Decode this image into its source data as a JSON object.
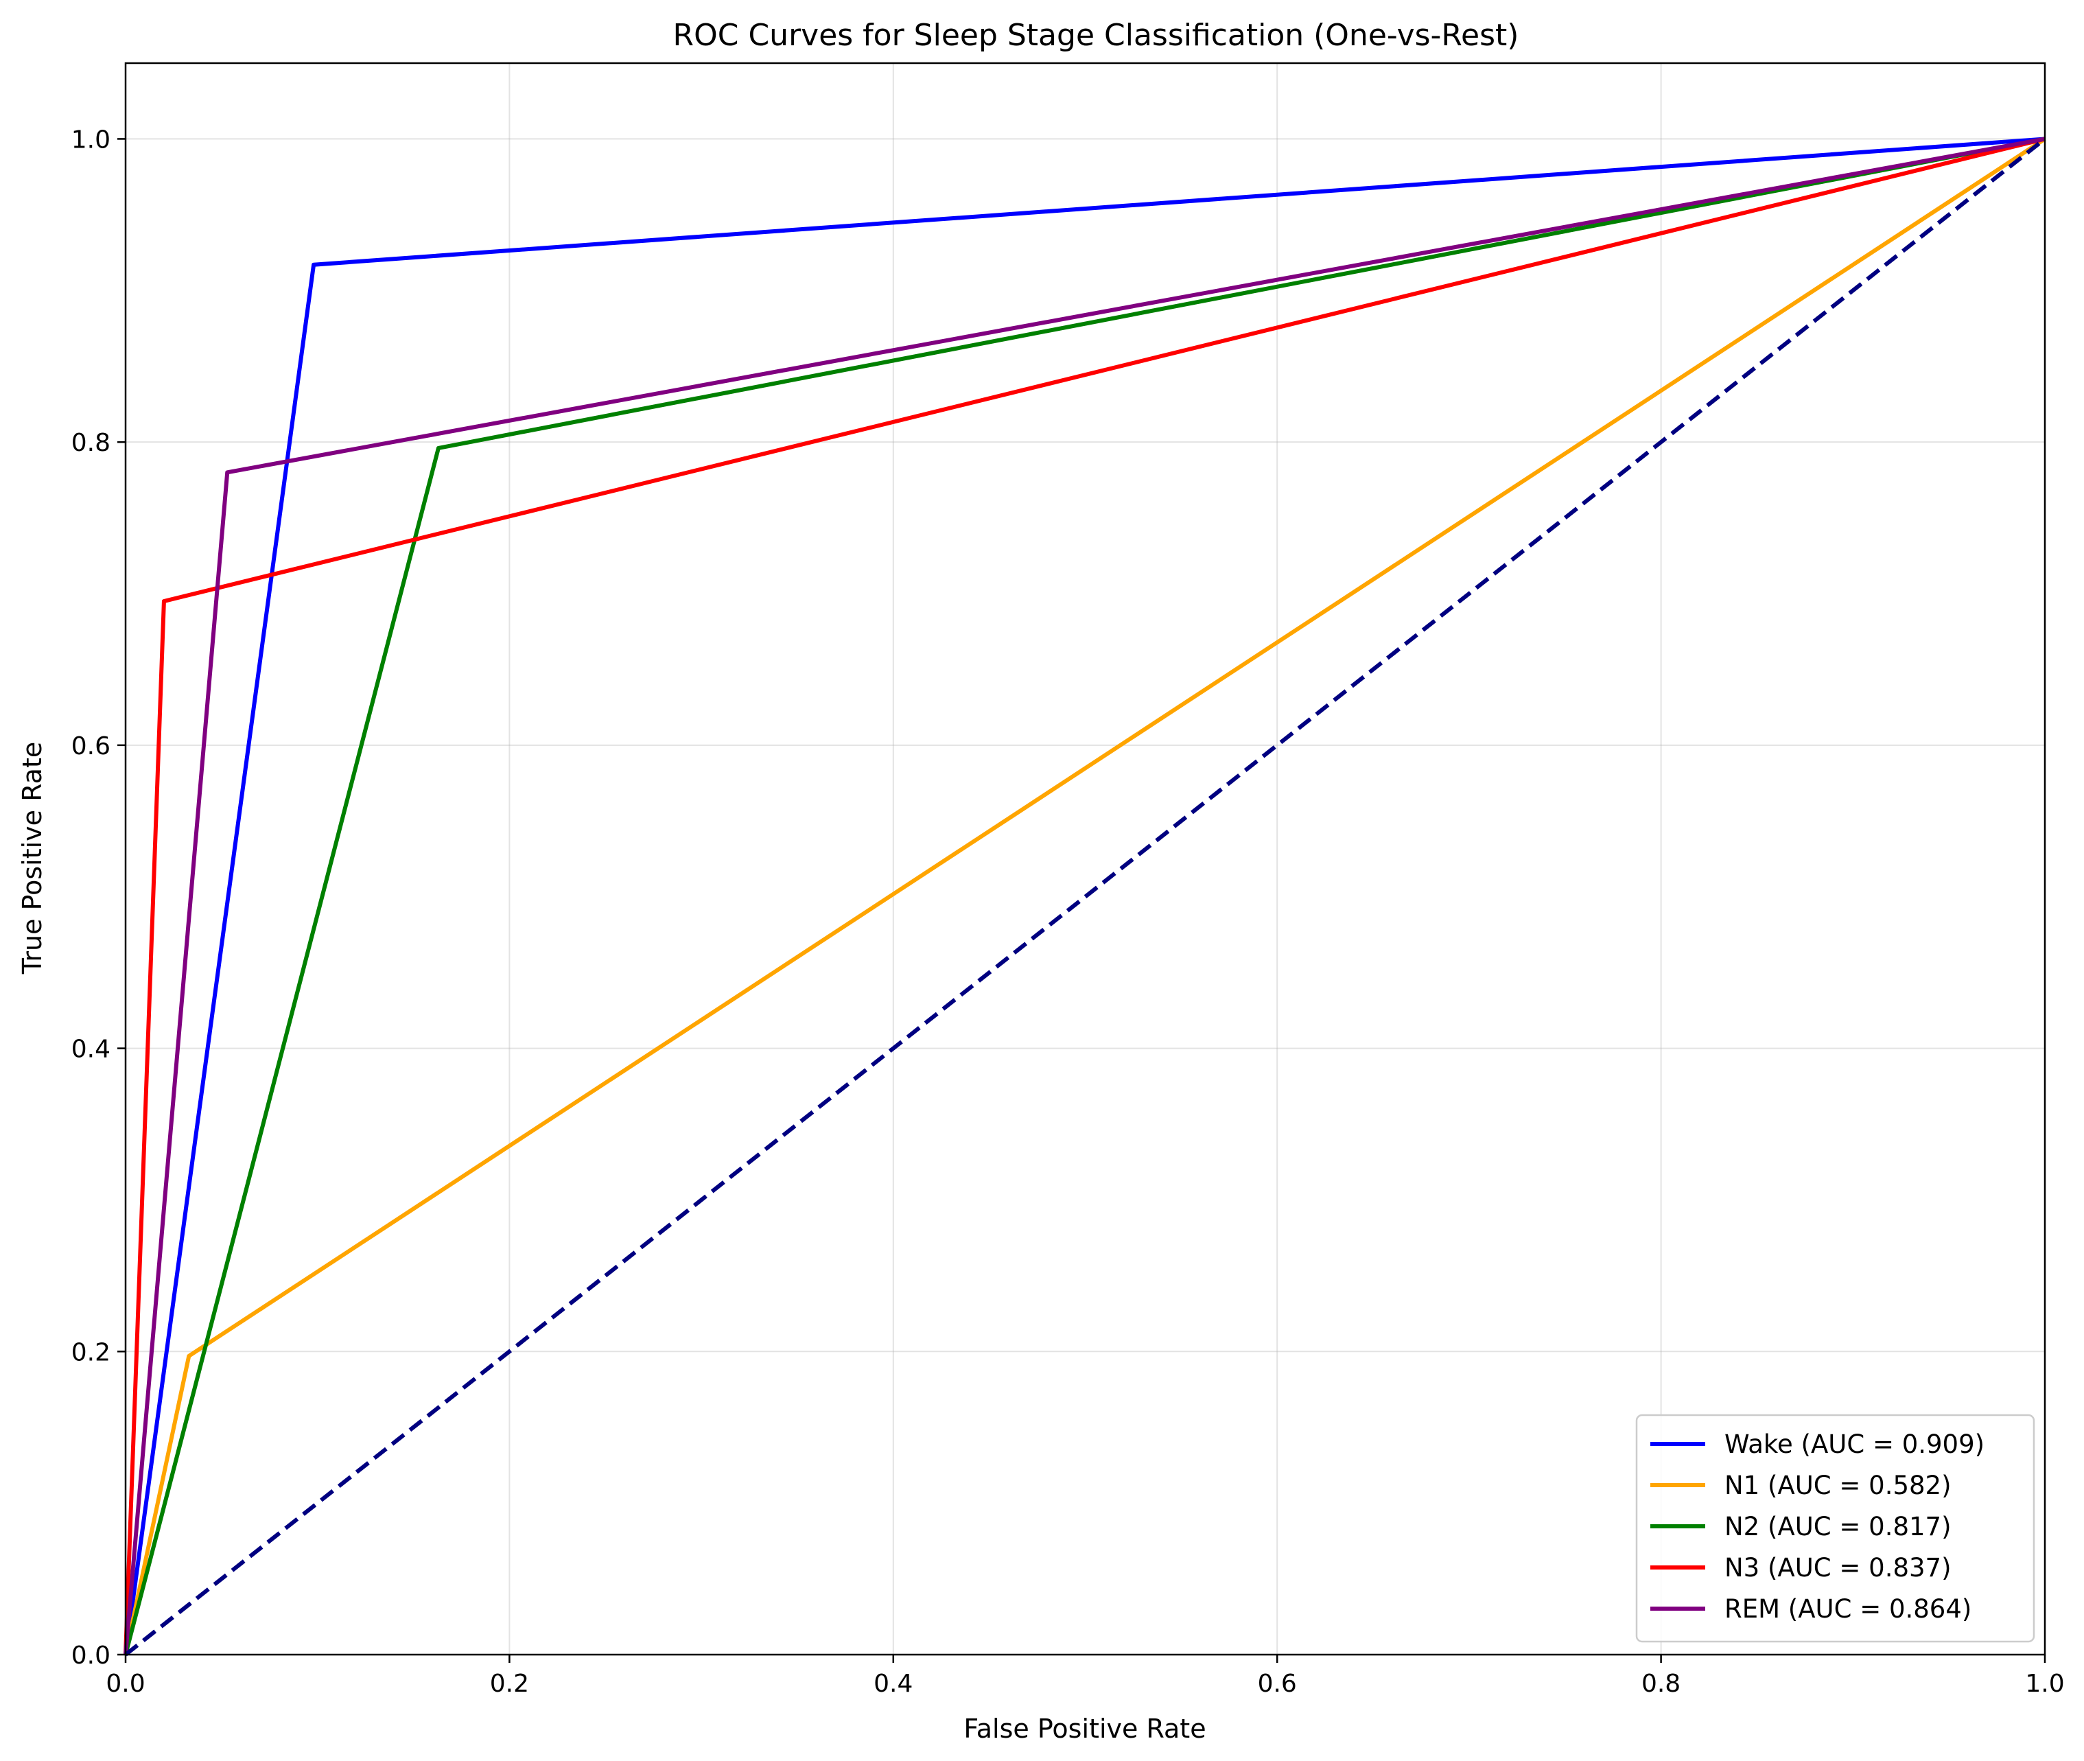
{
  "chart_data": {
    "type": "line",
    "title": "ROC Curves for Sleep Stage Classification (One-vs-Rest)",
    "xlabel": "False Positive Rate",
    "ylabel": "True Positive Rate",
    "xlim": [
      0,
      1
    ],
    "ylim": [
      0,
      1.05
    ],
    "xticks": [
      0.0,
      0.2,
      0.4,
      0.6,
      0.8,
      1.0
    ],
    "yticks": [
      0.0,
      0.2,
      0.4,
      0.6,
      0.8,
      1.0
    ],
    "xtick_labels": [
      "0.0",
      "0.2",
      "0.4",
      "0.6",
      "0.8",
      "1.0"
    ],
    "ytick_labels": [
      "0.0",
      "0.2",
      "0.4",
      "0.6",
      "0.8",
      "1.0"
    ],
    "grid": true,
    "legend_position": "lower-right",
    "series": [
      {
        "name": "Wake (AUC = 0.909)",
        "color": "#0000ff",
        "x": [
          0,
          0.098,
          1
        ],
        "y": [
          0,
          0.917,
          1
        ]
      },
      {
        "name": "N1 (AUC = 0.582)",
        "color": "#ffa500",
        "x": [
          0,
          0.033,
          1
        ],
        "y": [
          0,
          0.197,
          1
        ]
      },
      {
        "name": "N2 (AUC = 0.817)",
        "color": "#008000",
        "x": [
          0,
          0.163,
          1
        ],
        "y": [
          0,
          0.796,
          1
        ]
      },
      {
        "name": "N3 (AUC = 0.837)",
        "color": "#ff0000",
        "x": [
          0,
          0.02,
          1
        ],
        "y": [
          0,
          0.695,
          1
        ]
      },
      {
        "name": "REM (AUC = 0.864)",
        "color": "#800080",
        "x": [
          0,
          0.053,
          1
        ],
        "y": [
          0,
          0.78,
          1
        ]
      }
    ],
    "reference_line": {
      "color": "#000080",
      "style": "dashed",
      "x": [
        0,
        1
      ],
      "y": [
        0,
        1
      ]
    }
  }
}
